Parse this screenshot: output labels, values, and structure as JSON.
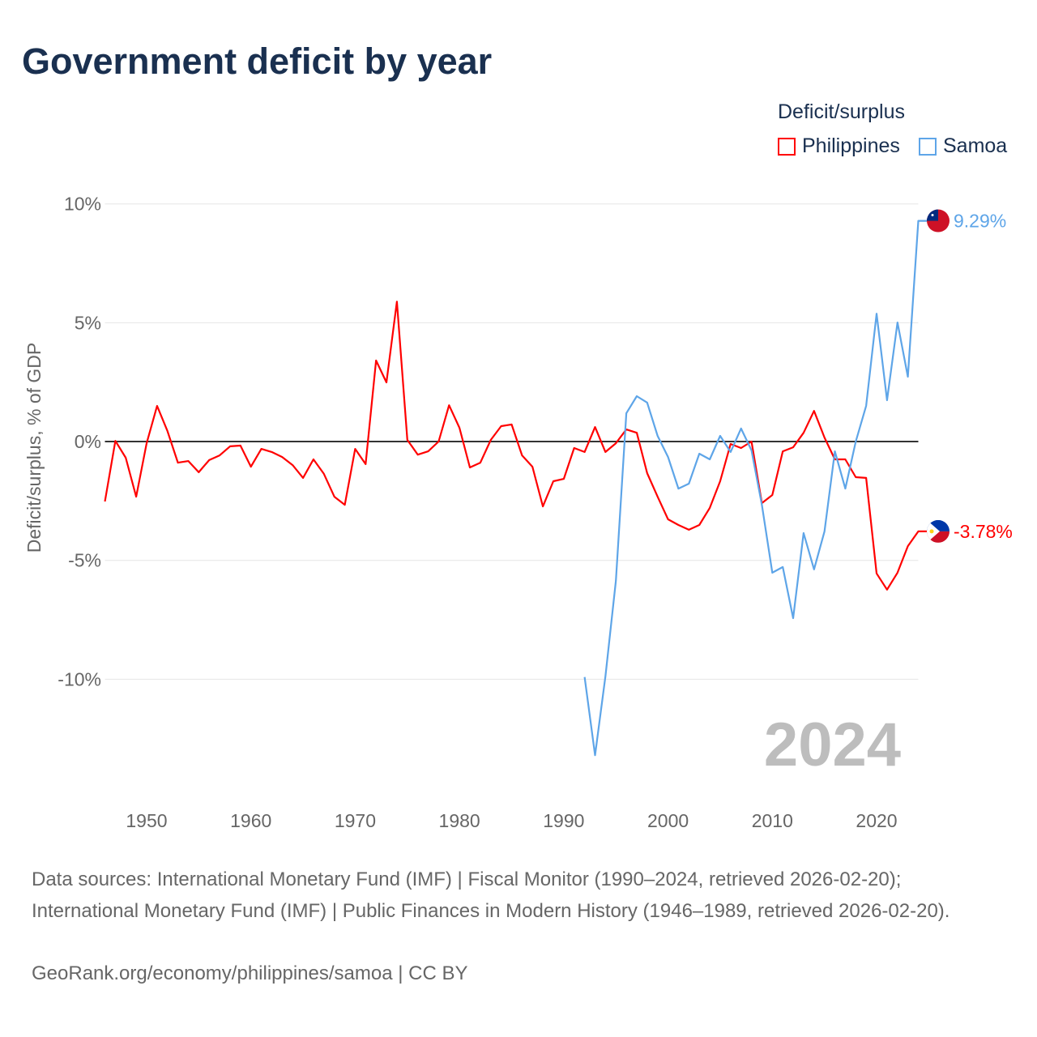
{
  "title": "Government deficit by year",
  "legend": {
    "title": "Deficit/surplus",
    "items": [
      {
        "name": "Philippines",
        "color": "#ff0000"
      },
      {
        "name": "Samoa",
        "color": "#5ea5e8"
      }
    ]
  },
  "year_label": "2024",
  "footer": {
    "sources": "Data sources: International Monetary Fund (IMF) | Fiscal Monitor (1990–2024, retrieved 2026-02-20); International Monetary Fund (IMF) | Public Finances in Modern History (1946–1989, retrieved 2026-02-20).",
    "credit": "GeoRank.org/economy/philippines/samoa | CC BY"
  },
  "chart_data": {
    "type": "line",
    "title": "Government deficit by year",
    "ylabel": "Deficit/surplus, % of GDP",
    "xlabel": "",
    "xlim": [
      1946,
      2024
    ],
    "ylim": [
      -15,
      10.4
    ],
    "grid": true,
    "legend_position": "top-right",
    "xticks": [
      1950,
      1960,
      1970,
      1980,
      1990,
      2000,
      2010,
      2020
    ],
    "yticks": [
      {
        "v": 10,
        "label": "10%"
      },
      {
        "v": 5,
        "label": "5%"
      },
      {
        "v": 0,
        "label": "0%"
      },
      {
        "v": -5,
        "label": "-5%"
      },
      {
        "v": -10,
        "label": "-10%"
      }
    ],
    "series": [
      {
        "name": "Philippines",
        "color": "#ff0000",
        "end_label": "-3.78%",
        "start_year": 1946,
        "values": [
          -2.52,
          0.03,
          -0.68,
          -2.32,
          -0.07,
          1.5,
          0.44,
          -0.89,
          -0.82,
          -1.29,
          -0.78,
          -0.58,
          -0.2,
          -0.17,
          -1.06,
          -0.31,
          -0.44,
          -0.65,
          -0.99,
          -1.53,
          -0.75,
          -1.36,
          -2.32,
          -2.66,
          -0.31,
          -0.95,
          3.41,
          2.49,
          5.89,
          0.07,
          -0.55,
          -0.41,
          0,
          1.53,
          0.58,
          -1.09,
          -0.89,
          0.07,
          0.65,
          0.72,
          -0.58,
          -1.06,
          -2.73,
          -1.67,
          -1.57,
          -0.27,
          -0.44,
          0.61,
          -0.44,
          -0.07,
          0.51,
          0.37,
          -1.33,
          -2.32,
          -3.27,
          -3.51,
          -3.71,
          -3.51,
          -2.79,
          -1.67,
          -0.1,
          -0.27,
          0,
          -2.59,
          -2.25,
          -0.41,
          -0.24,
          0.37,
          1.29,
          0.17,
          -0.75,
          -0.75,
          -1.5,
          -1.53,
          -5.55,
          -6.23,
          -5.52,
          -4.4,
          -3.78
        ]
      },
      {
        "name": "Samoa",
        "color": "#5ea5e8",
        "end_label": "9.29%",
        "start_year": 1992,
        "values": [
          -9.91,
          -13.2,
          -9.88,
          -5.86,
          1.19,
          1.91,
          1.64,
          0.24,
          -0.65,
          -1.98,
          -1.77,
          -0.51,
          -0.75,
          0.24,
          -0.44,
          0.55,
          -0.37,
          -2.66,
          -5.52,
          -5.28,
          -7.43,
          -3.85,
          -5.38,
          -3.78,
          -0.41,
          -1.98,
          0,
          1.5,
          5.38,
          1.74,
          5.01,
          2.73,
          9.29
        ]
      }
    ]
  }
}
